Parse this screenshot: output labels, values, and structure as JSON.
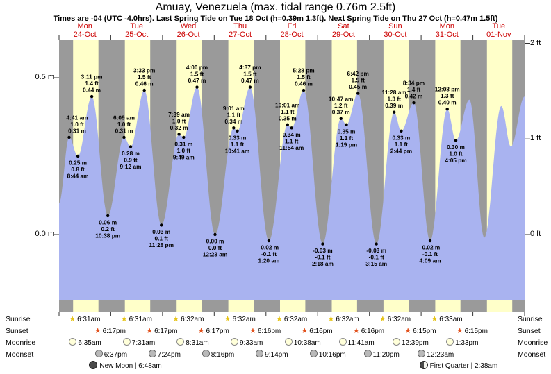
{
  "title": "Amuay, Venezuela (max. tidal range 0.76m 2.5ft)",
  "subtitle": "Times are -04 (UTC -4.0hrs). Last Spring Tide on Tue 18 Oct (h=0.39m 1.3ft). Next Spring Tide on Thu 27 Oct (h=0.47m 1.5ft)",
  "colors": {
    "night_band": "#9a9a9a",
    "day_band": "#ffffc9",
    "tide_fill": "#a9b3f0",
    "day_label": "#cc0000",
    "sunrise_star": "#e6c417",
    "sunset_star": "#e2511c",
    "moonrise_fill": "#ffffd9",
    "moonset_fill": "#b9b9b9"
  },
  "days": [
    {
      "name": "Mon",
      "date": "24-Oct"
    },
    {
      "name": "Tue",
      "date": "25-Oct"
    },
    {
      "name": "Wed",
      "date": "26-Oct"
    },
    {
      "name": "Thu",
      "date": "27-Oct"
    },
    {
      "name": "Fri",
      "date": "28-Oct"
    },
    {
      "name": "Sat",
      "date": "29-Oct"
    },
    {
      "name": "Sun",
      "date": "30-Oct"
    },
    {
      "name": "Mon",
      "date": "31-Oct"
    },
    {
      "name": "Tue",
      "date": "01-Nov"
    }
  ],
  "axis": {
    "left": [
      {
        "text": "0.5 m",
        "value_m": 0.5
      },
      {
        "text": "0.0 m",
        "value_m": 0.0
      }
    ],
    "right": [
      {
        "text": "2 ft",
        "value_m": 0.6096
      },
      {
        "text": "1 ft",
        "value_m": 0.3048
      },
      {
        "text": "0 ft",
        "value_m": 0.0
      }
    ]
  },
  "chart_data": {
    "type": "area",
    "title": "Amuay, Venezuela tide height",
    "xlabel": "time (9 days, Mon 24-Oct 00:00 to Wed 02-Nov 00:00, UTC-4)",
    "ylabel": "tide height (m left axis, ft right axis)",
    "x_range_hours": [
      0,
      216
    ],
    "ylim_m": [
      -0.25,
      0.62
    ],
    "grid": "day-night shading bands, daylight approx 6:31am-6:17pm",
    "tide_events": [
      {
        "day": "Mon 24-Oct",
        "type": "high",
        "time": "4:41 am",
        "t": 4.683,
        "height_m": 0.31,
        "label_m": "0.31 m",
        "label_ft": "1.0 ft"
      },
      {
        "day": "Mon 24-Oct",
        "type": "low",
        "time": "8:44 am",
        "t": 8.733,
        "height_m": 0.25,
        "label_m": "0.25 m",
        "label_ft": "0.8 ft"
      },
      {
        "day": "Mon 24-Oct",
        "type": "high",
        "time": "3:11 pm",
        "t": 15.183,
        "height_m": 0.44,
        "label_m": "0.44 m",
        "label_ft": "1.4 ft"
      },
      {
        "day": "Mon 24-Oct",
        "type": "low",
        "time": "10:38 pm",
        "t": 22.633,
        "height_m": 0.06,
        "label_m": "0.06 m",
        "label_ft": "0.2 ft"
      },
      {
        "day": "Tue 25-Oct",
        "type": "high",
        "time": "6:09 am",
        "t": 30.15,
        "height_m": 0.31,
        "label_m": "0.31 m",
        "label_ft": "1.0 ft"
      },
      {
        "day": "Tue 25-Oct",
        "type": "low",
        "time": "9:12 am",
        "t": 33.2,
        "height_m": 0.28,
        "label_m": "0.28 m",
        "label_ft": "0.9 ft"
      },
      {
        "day": "Tue 25-Oct",
        "type": "high",
        "time": "3:33 pm",
        "t": 39.55,
        "height_m": 0.46,
        "label_m": "0.46 m",
        "label_ft": "1.5 ft"
      },
      {
        "day": "Tue 25-Oct",
        "type": "low",
        "time": "11:28 pm",
        "t": 47.467,
        "height_m": 0.03,
        "label_m": "0.03 m",
        "label_ft": "0.1 ft"
      },
      {
        "day": "Wed 26-Oct",
        "type": "high",
        "time": "7:39 am",
        "t": 55.65,
        "height_m": 0.32,
        "label_m": "0.32 m",
        "label_ft": "1.0 ft"
      },
      {
        "day": "Wed 26-Oct",
        "type": "low",
        "time": "9:49 am",
        "t": 57.817,
        "height_m": 0.31,
        "label_m": "0.31 m",
        "label_ft": "1.0 ft"
      },
      {
        "day": "Wed 26-Oct",
        "type": "high",
        "time": "4:00 pm",
        "t": 64.0,
        "height_m": 0.47,
        "label_m": "0.47 m",
        "label_ft": "1.5 ft"
      },
      {
        "day": "Thu 27-Oct",
        "type": "low",
        "time": "12:23 am",
        "t": 72.383,
        "height_m": 0.0,
        "label_m": "0.00 m",
        "label_ft": "0.0 ft"
      },
      {
        "day": "Thu 27-Oct",
        "type": "high",
        "time": "9:01 am",
        "t": 81.017,
        "height_m": 0.34,
        "label_m": "0.34 m",
        "label_ft": "1.1 ft"
      },
      {
        "day": "Thu 27-Oct",
        "type": "low",
        "time": "10:41 am",
        "t": 82.683,
        "height_m": 0.33,
        "label_m": "0.33 m",
        "label_ft": "1.1 ft"
      },
      {
        "day": "Thu 27-Oct",
        "type": "high",
        "time": "4:37 pm",
        "t": 88.617,
        "height_m": 0.47,
        "label_m": "0.47 m",
        "label_ft": "1.5 ft"
      },
      {
        "day": "Fri 28-Oct",
        "type": "low",
        "time": "1:20 am",
        "t": 97.333,
        "height_m": -0.02,
        "label_m": "-0.02 m",
        "label_ft": "-0.1 ft"
      },
      {
        "day": "Fri 28-Oct",
        "type": "high",
        "time": "10:01 am",
        "t": 106.017,
        "height_m": 0.35,
        "label_m": "0.35 m",
        "label_ft": "1.1 ft"
      },
      {
        "day": "Fri 28-Oct",
        "type": "low",
        "time": "11:54 am",
        "t": 107.9,
        "height_m": 0.34,
        "label_m": "0.34 m",
        "label_ft": "1.1 ft"
      },
      {
        "day": "Fri 28-Oct",
        "type": "high",
        "time": "5:28 pm",
        "t": 113.467,
        "height_m": 0.46,
        "label_m": "0.46 m",
        "label_ft": "1.5 ft"
      },
      {
        "day": "Sat 29-Oct",
        "type": "low",
        "time": "2:18 am",
        "t": 122.3,
        "height_m": -0.03,
        "label_m": "-0.03 m",
        "label_ft": "-0.1 ft"
      },
      {
        "day": "Sat 29-Oct",
        "type": "high",
        "time": "10:47 am",
        "t": 130.783,
        "height_m": 0.37,
        "label_m": "0.37 m",
        "label_ft": "1.2 ft"
      },
      {
        "day": "Sat 29-Oct",
        "type": "low",
        "time": "1:19 pm",
        "t": 133.317,
        "height_m": 0.35,
        "label_m": "0.35 m",
        "label_ft": "1.1 ft"
      },
      {
        "day": "Sat 29-Oct",
        "type": "high",
        "time": "6:42 pm",
        "t": 138.7,
        "height_m": 0.45,
        "label_m": "0.45 m",
        "label_ft": "1.5 ft"
      },
      {
        "day": "Sun 30-Oct",
        "type": "low",
        "time": "3:15 am",
        "t": 147.25,
        "height_m": -0.03,
        "label_m": "-0.03 m",
        "label_ft": "-0.1 ft"
      },
      {
        "day": "Sun 30-Oct",
        "type": "high",
        "time": "11:28 am",
        "t": 155.467,
        "height_m": 0.39,
        "label_m": "0.39 m",
        "label_ft": "1.3 ft"
      },
      {
        "day": "Sun 30-Oct",
        "type": "low",
        "time": "2:44 pm",
        "t": 158.733,
        "height_m": 0.33,
        "label_m": "0.33 m",
        "label_ft": "1.1 ft"
      },
      {
        "day": "Sun 30-Oct",
        "type": "high",
        "time": "8:34 pm",
        "t": 164.567,
        "height_m": 0.42,
        "label_m": "0.42 m",
        "label_ft": "1.4 ft"
      },
      {
        "day": "Mon 31-Oct",
        "type": "low",
        "time": "4:09 am",
        "t": 172.15,
        "height_m": -0.02,
        "label_m": "-0.02 m",
        "label_ft": "-0.1 ft"
      },
      {
        "day": "Mon 31-Oct",
        "type": "high",
        "time": "12:08 pm",
        "t": 180.133,
        "height_m": 0.4,
        "label_m": "0.40 m",
        "label_ft": "1.3 ft"
      },
      {
        "day": "Mon 31-Oct",
        "type": "low",
        "time": "4:05 pm",
        "t": 184.083,
        "height_m": 0.3,
        "label_m": "0.30 m",
        "label_ft": "1.0 ft"
      }
    ],
    "curve_points": [
      {
        "t": 0,
        "v": 0.1
      },
      {
        "t": 4.683,
        "v": 0.31
      },
      {
        "t": 8.733,
        "v": 0.25
      },
      {
        "t": 15.183,
        "v": 0.44
      },
      {
        "t": 22.633,
        "v": 0.06
      },
      {
        "t": 30.15,
        "v": 0.31
      },
      {
        "t": 33.2,
        "v": 0.28
      },
      {
        "t": 39.55,
        "v": 0.46
      },
      {
        "t": 47.467,
        "v": 0.03
      },
      {
        "t": 55.65,
        "v": 0.32
      },
      {
        "t": 57.817,
        "v": 0.31
      },
      {
        "t": 64.0,
        "v": 0.47
      },
      {
        "t": 72.383,
        "v": 0.0
      },
      {
        "t": 81.017,
        "v": 0.34
      },
      {
        "t": 82.683,
        "v": 0.33
      },
      {
        "t": 88.617,
        "v": 0.47
      },
      {
        "t": 97.333,
        "v": -0.02
      },
      {
        "t": 106.017,
        "v": 0.35
      },
      {
        "t": 107.9,
        "v": 0.34
      },
      {
        "t": 113.467,
        "v": 0.46
      },
      {
        "t": 122.3,
        "v": -0.03
      },
      {
        "t": 130.783,
        "v": 0.37
      },
      {
        "t": 133.317,
        "v": 0.35
      },
      {
        "t": 138.7,
        "v": 0.45
      },
      {
        "t": 147.25,
        "v": -0.03
      },
      {
        "t": 155.467,
        "v": 0.39
      },
      {
        "t": 158.733,
        "v": 0.33
      },
      {
        "t": 164.567,
        "v": 0.42
      },
      {
        "t": 172.15,
        "v": -0.02
      },
      {
        "t": 180.133,
        "v": 0.4
      },
      {
        "t": 184.083,
        "v": 0.3
      },
      {
        "t": 190.4,
        "v": 0.43
      },
      {
        "t": 197.3,
        "v": -0.01
      },
      {
        "t": 205.2,
        "v": 0.41
      },
      {
        "t": 209.6,
        "v": 0.28
      },
      {
        "t": 216,
        "v": 0.44
      }
    ]
  },
  "sun_moon": {
    "row_labels": [
      "Sunrise",
      "Sunset",
      "Moonrise",
      "Moonset"
    ],
    "sunrise": [
      {
        "time": "6:31am",
        "t": 6.517
      },
      {
        "time": "6:31am",
        "t": 30.517
      },
      {
        "time": "6:32am",
        "t": 54.533
      },
      {
        "time": "6:32am",
        "t": 78.533
      },
      {
        "time": "6:32am",
        "t": 102.533
      },
      {
        "time": "6:32am",
        "t": 126.533
      },
      {
        "time": "6:32am",
        "t": 150.533
      },
      {
        "time": "6:33am",
        "t": 174.55
      }
    ],
    "sunset": [
      {
        "time": "6:17pm",
        "t": 18.283
      },
      {
        "time": "6:17pm",
        "t": 42.283
      },
      {
        "time": "6:17pm",
        "t": 66.283
      },
      {
        "time": "6:16pm",
        "t": 90.267
      },
      {
        "time": "6:16pm",
        "t": 114.267
      },
      {
        "time": "6:16pm",
        "t": 138.267
      },
      {
        "time": "6:15pm",
        "t": 162.25
      },
      {
        "time": "6:15pm",
        "t": 186.25
      }
    ],
    "moonrise": [
      {
        "time": "6:35am",
        "t": 6.583
      },
      {
        "time": "7:31am",
        "t": 31.517
      },
      {
        "time": "8:31am",
        "t": 56.517
      },
      {
        "time": "9:33am",
        "t": 81.55
      },
      {
        "time": "10:38am",
        "t": 106.633
      },
      {
        "time": "11:41am",
        "t": 131.683
      },
      {
        "time": "12:39pm",
        "t": 156.65
      },
      {
        "time": "1:33pm",
        "t": 181.55
      }
    ],
    "moonset": [
      {
        "time": "6:37pm",
        "t": 18.617
      },
      {
        "time": "7:24pm",
        "t": 43.4
      },
      {
        "time": "8:16pm",
        "t": 68.267
      },
      {
        "time": "9:14pm",
        "t": 93.233
      },
      {
        "time": "10:16pm",
        "t": 118.267
      },
      {
        "time": "11:20pm",
        "t": 143.333
      },
      {
        "time": "12:23am",
        "t": 168.383
      }
    ]
  },
  "moon_phases": [
    {
      "name": "New Moon",
      "time": "6:48am",
      "t": 30.8,
      "icon": "new-moon-icon"
    },
    {
      "name": "First Quarter",
      "time": "2:38am",
      "t": 194.633,
      "icon": "first-quarter-icon"
    }
  ]
}
